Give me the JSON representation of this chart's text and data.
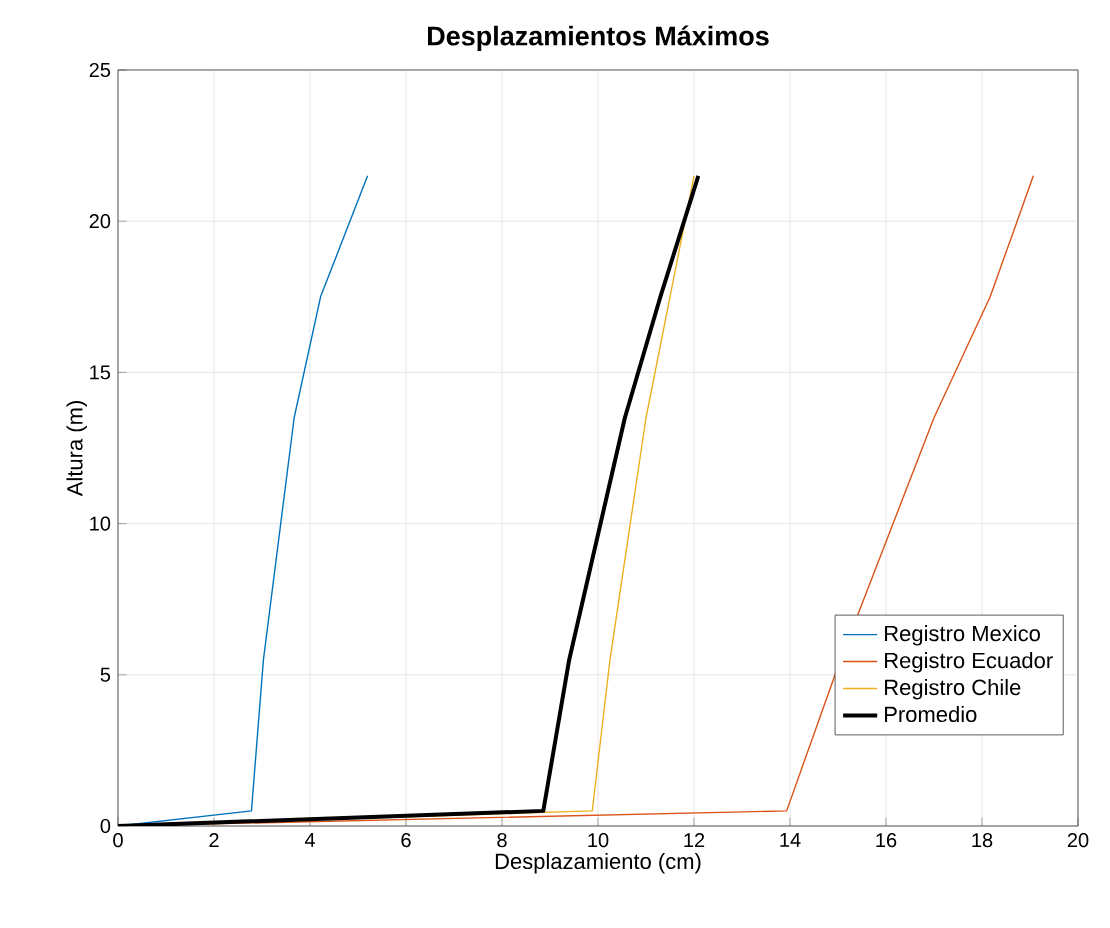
{
  "chart_data": {
    "type": "line",
    "title": "Desplazamientos Máximos",
    "xlabel": "Desplazamiento (cm)",
    "ylabel": "Altura (m)",
    "xlim": [
      0,
      20
    ],
    "xticks": [
      0,
      2,
      4,
      6,
      8,
      10,
      12,
      14,
      16,
      18,
      20
    ],
    "ylim": [
      0,
      25
    ],
    "yticks": [
      0,
      5,
      10,
      15,
      20,
      25
    ],
    "grid": true,
    "legend": "right",
    "series": [
      {
        "name": "Registro Mexico",
        "color": "#0072bd",
        "x": [
          0,
          2.78,
          3.03,
          3.67,
          4.22,
          5.2
        ],
        "values": [
          0,
          0.5,
          5.5,
          13.5,
          17.5,
          21.5
        ]
      },
      {
        "name": "Registro Ecuador",
        "color": "#d95319",
        "x": [
          0,
          13.93,
          15.05,
          17.0,
          18.17,
          19.07
        ],
        "values": [
          0,
          0.5,
          5.5,
          13.5,
          17.5,
          21.5
        ]
      },
      {
        "name": "Registro Chile",
        "color": "#edb120",
        "x": [
          0,
          9.88,
          10.25,
          11.0,
          11.5,
          12.0
        ],
        "values": [
          0,
          0.5,
          5.5,
          13.5,
          17.5,
          21.5
        ]
      },
      {
        "name": "Promedio",
        "color": "#000000",
        "x": [
          0,
          8.86,
          9.4,
          10.56,
          11.3,
          12.09
        ],
        "values": [
          0,
          0.5,
          5.5,
          13.5,
          17.5,
          21.5
        ]
      }
    ]
  }
}
